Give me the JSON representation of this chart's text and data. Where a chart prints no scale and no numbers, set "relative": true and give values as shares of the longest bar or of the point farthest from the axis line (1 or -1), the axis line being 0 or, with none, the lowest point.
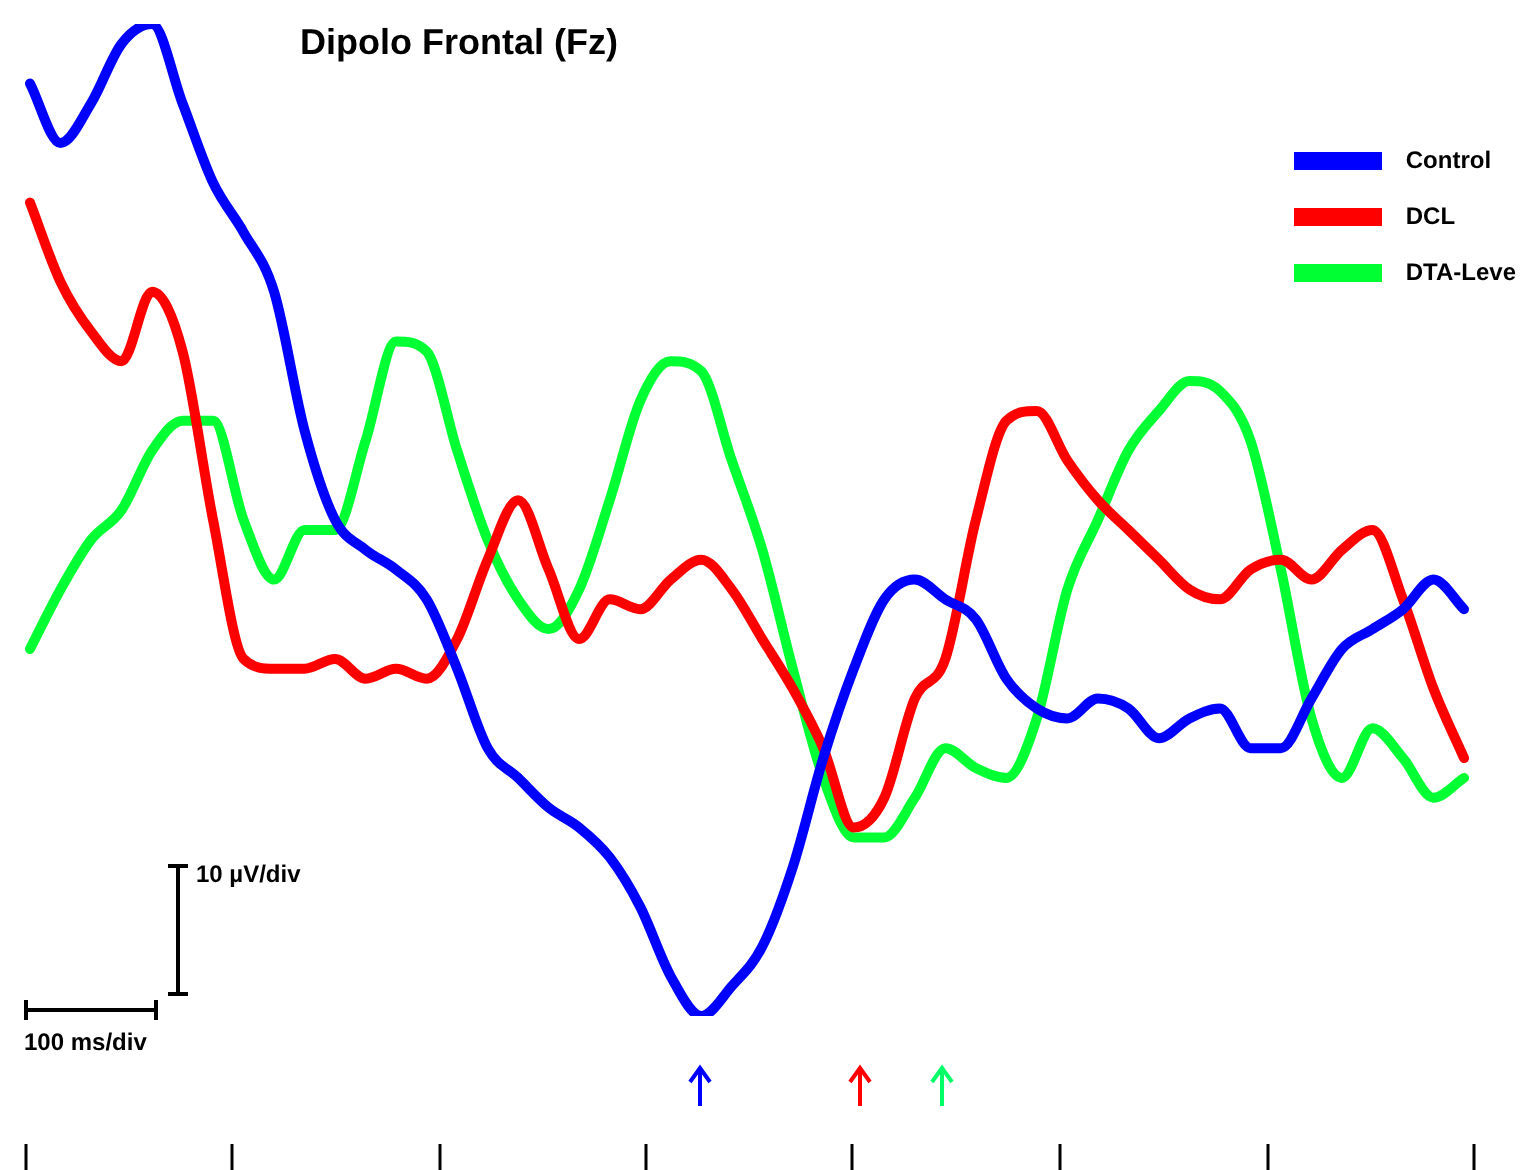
{
  "chart_data": {
    "type": "line",
    "title": "Dipolo Frontal  (Fz)",
    "relative": true,
    "legend": "top right",
    "marker": "none",
    "categories": [
      null,
      null,
      null,
      null,
      null,
      null,
      null,
      null,
      null,
      null,
      null,
      null,
      null,
      null,
      null,
      null,
      null,
      null,
      null,
      null,
      null,
      null,
      null,
      null,
      null,
      null,
      null,
      null,
      null,
      null,
      null,
      null,
      null,
      null,
      null,
      null,
      null,
      null,
      null,
      null,
      null,
      null,
      null,
      null,
      null,
      null,
      null,
      null
    ],
    "series": [
      {
        "name": "Control",
        "color": "#0000ff",
        "values": [
          0.94,
          0.88,
          0.92,
          0.98,
          1,
          0.92,
          0.84,
          0.79,
          0.73,
          0.59,
          0.5,
          0.47,
          0.45,
          0.42,
          0.35,
          0.27,
          0.24,
          0.21,
          0.19,
          0.16,
          0.11,
          0.04,
          0,
          0.03,
          0.07,
          0.15,
          0.26,
          0.35,
          0.42,
          0.44,
          0.42,
          0.4,
          0.34,
          0.31,
          0.3,
          0.32,
          0.31,
          0.28,
          0.3,
          0.31,
          0.27,
          0.27,
          0.32,
          0.37,
          0.39,
          0.41,
          0.44,
          0.41
        ]
      },
      {
        "name": "DCL",
        "color": "#ff0000",
        "values": [
          0.82,
          0.74,
          0.69,
          0.66,
          0.73,
          0.67,
          0.5,
          0.36,
          0.35,
          0.35,
          0.36,
          0.34,
          0.35,
          0.34,
          0.38,
          0.46,
          0.52,
          0.45,
          0.38,
          0.42,
          0.41,
          0.44,
          0.46,
          0.43,
          0.38,
          0.33,
          0.27,
          0.19,
          0.22,
          0.32,
          0.36,
          0.5,
          0.6,
          0.61,
          0.56,
          0.52,
          0.49,
          0.46,
          0.43,
          0.42,
          0.45,
          0.46,
          0.44,
          0.47,
          0.49,
          0.42,
          0.33,
          0.26
        ]
      },
      {
        "name": "DTA-Leve",
        "color": "#00ff33",
        "values": [
          0.37,
          0.43,
          0.48,
          0.51,
          0.57,
          0.6,
          0.6,
          0.5,
          0.44,
          0.49,
          0.49,
          0.58,
          0.68,
          0.67,
          0.57,
          0.48,
          0.42,
          0.39,
          0.43,
          0.52,
          0.62,
          0.66,
          0.65,
          0.56,
          0.47,
          0.35,
          0.24,
          0.18,
          0.18,
          0.22,
          0.27,
          0.25,
          0.24,
          0.3,
          0.43,
          0.5,
          0.57,
          0.61,
          0.64,
          0.63,
          0.58,
          0.45,
          0.3,
          0.24,
          0.29,
          0.26,
          0.22,
          0.24
        ]
      }
    ],
    "annotations": [
      "10 µV/div",
      "100 ms/div"
    ]
  }
}
